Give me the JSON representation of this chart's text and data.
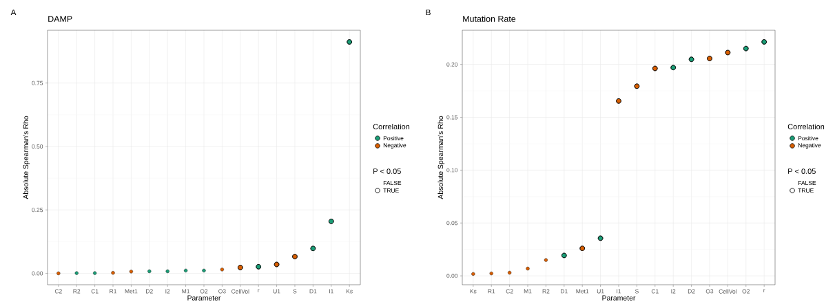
{
  "chart_data": [
    {
      "type": "scatter",
      "title": "DAMP",
      "xlabel": "Parameter",
      "ylabel": "Absolute Spearman's Rho",
      "legend_title": "Correlation",
      "legend": "right",
      "grid": true,
      "marker": "circle",
      "annotations": [
        "A",
        "P < 0.05",
        "FALSE"
      ],
      "categories": [
        "C2",
        "R2",
        "C1",
        "R1",
        "Met1",
        "D2",
        "I2",
        "M1",
        "O2",
        "O3",
        "CellVol",
        "r",
        "U1",
        "S",
        "D1",
        "I1",
        "Ks"
      ],
      "ylim": [
        -0.045,
        0.958
      ],
      "yticks": [
        {
          "value": 0,
          "label": "0.00"
        },
        {
          "value": 0.25,
          "label": "0.25"
        },
        {
          "value": 0.5,
          "label": "0.50"
        },
        {
          "value": 0.75,
          "label": "0.75"
        }
      ],
      "series": [
        {
          "name": "Positive",
          "color": "#1b9e77",
          "values": [
            null,
            0.001,
            0.001,
            null,
            null,
            0.008,
            0.008,
            0.011,
            0.011,
            null,
            null,
            0.026,
            null,
            null,
            0.098,
            0.205,
            0.912
          ],
          "sizes": [
            null,
            0.5,
            0.5,
            null,
            null,
            0.5,
            0.5,
            0.5,
            0.5,
            null,
            null,
            1,
            null,
            null,
            1,
            1,
            1
          ]
        },
        {
          "name": "Negative",
          "color": "#d95f02",
          "values": [
            0.0,
            null,
            null,
            0.002,
            0.007,
            null,
            null,
            null,
            null,
            0.015,
            0.023,
            null,
            0.035,
            0.066,
            null,
            null,
            null
          ],
          "sizes": [
            0.5,
            null,
            null,
            0.5,
            0.5,
            null,
            null,
            null,
            null,
            0.5,
            1,
            null,
            1,
            1,
            null,
            null,
            null
          ]
        },
        {
          "name": "TRUE",
          "color": "#000000",
          "values": [
            null,
            null,
            null,
            null,
            null,
            null,
            null,
            null,
            null,
            null,
            0.023,
            0.026,
            0.035,
            0.066,
            0.098,
            0.205,
            0.912
          ]
        }
      ]
    },
    {
      "type": "scatter",
      "title": "Mutation Rate",
      "xlabel": "Parameter",
      "ylabel": "Absolute Spearman's Rho",
      "legend_title": "Correlation",
      "legend": "right",
      "grid": true,
      "marker": "circle",
      "annotations": [
        "B",
        "P < 0.05",
        "FALSE"
      ],
      "categories": [
        "Ks",
        "R1",
        "C2",
        "M1",
        "R2",
        "D1",
        "Met1",
        "U1",
        "I1",
        "S",
        "C1",
        "I2",
        "D2",
        "O3",
        "CellVol",
        "O2",
        "r"
      ],
      "ylim": [
        -0.0084,
        0.2323
      ],
      "yticks": [
        {
          "value": 0,
          "label": "0.00"
        },
        {
          "value": 0.05,
          "label": "0.05"
        },
        {
          "value": 0.1,
          "label": "0.10"
        },
        {
          "value": 0.15,
          "label": "0.15"
        },
        {
          "value": 0.2,
          "label": "0.20"
        }
      ],
      "series": [
        {
          "name": "Positive",
          "color": "#1b9e77",
          "values": [
            null,
            null,
            null,
            null,
            null,
            0.0193,
            null,
            0.0356,
            null,
            null,
            null,
            0.197,
            0.2048,
            null,
            null,
            0.215,
            0.2213
          ],
          "sizes": [
            null,
            null,
            null,
            null,
            null,
            1,
            null,
            1,
            null,
            null,
            null,
            1,
            1,
            null,
            null,
            1,
            1
          ]
        },
        {
          "name": "Negative",
          "color": "#d95f02",
          "values": [
            0.0018,
            0.0023,
            0.003,
            0.0069,
            0.015,
            null,
            0.026,
            null,
            0.1654,
            0.1794,
            0.1962,
            null,
            null,
            0.2056,
            0.2112,
            null,
            null
          ],
          "sizes": [
            0.5,
            0.5,
            0.5,
            0.5,
            0.5,
            null,
            1,
            null,
            1,
            1,
            1,
            null,
            null,
            1,
            1,
            null,
            null
          ]
        },
        {
          "name": "TRUE",
          "color": "#000000",
          "values": [
            null,
            null,
            null,
            null,
            null,
            0.0193,
            0.026,
            0.0356,
            0.1654,
            0.1794,
            0.1962,
            0.197,
            0.2048,
            0.2056,
            0.2112,
            0.215,
            0.2213
          ]
        }
      ]
    }
  ]
}
